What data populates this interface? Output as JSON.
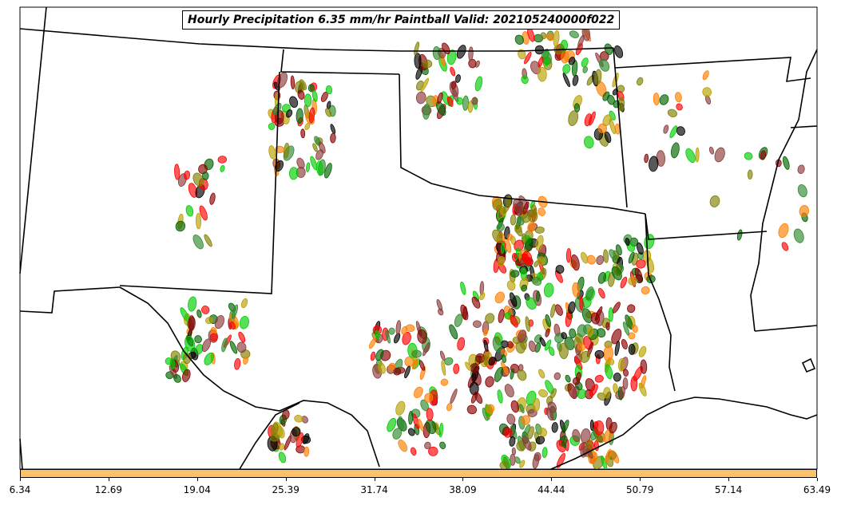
{
  "title": "Hourly Precipitation 6.35 mm/hr Paintball Valid: 202105240000f022",
  "colorbar": {
    "color": "#fdc26a",
    "ticks": [
      "6.34",
      "12.69",
      "19.04",
      "25.39",
      "31.74",
      "38.09",
      "44.44",
      "50.79",
      "57.14",
      "63.49"
    ]
  },
  "member_colors": [
    "#00cc00",
    "#ff0000",
    "#ff7f00",
    "#808000",
    "#006400",
    "#8b0000",
    "#000000",
    "#8c3a3a",
    "#2e8b2e",
    "#b8a000"
  ]
}
